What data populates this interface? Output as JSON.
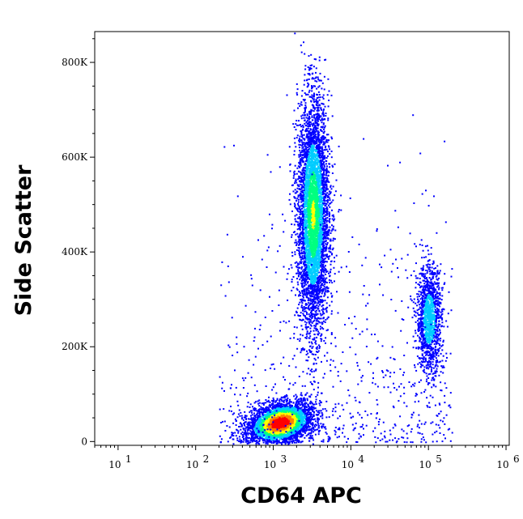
{
  "chart_data": {
    "type": "scatter",
    "subtype": "flow-cytometry-density-dot-plot",
    "title": "",
    "xlabel": "CD64 APC",
    "ylabel": "Side Scatter",
    "x_scale": "log",
    "y_scale": "linear",
    "xlim": [
      5,
      1100000.0
    ],
    "ylim": [
      -8000,
      865000
    ],
    "x_ticks": [
      {
        "value": 10,
        "base": "10",
        "exp": "1"
      },
      {
        "value": 100,
        "base": "10",
        "exp": "2"
      },
      {
        "value": 1000,
        "base": "10",
        "exp": "3"
      },
      {
        "value": 10000,
        "base": "10",
        "exp": "4"
      },
      {
        "value": 100000,
        "base": "10",
        "exp": "5"
      },
      {
        "value": 1000000,
        "base": "10",
        "exp": "6"
      }
    ],
    "y_ticks": [
      {
        "value": 0,
        "label": "0"
      },
      {
        "value": 200000,
        "label": "200K"
      },
      {
        "value": 400000,
        "label": "400K"
      },
      {
        "value": 600000,
        "label": "600K"
      },
      {
        "value": 800000,
        "label": "800K"
      }
    ],
    "grid": false,
    "legend": "none",
    "colormap": [
      "#0000ff",
      "#00ccff",
      "#00ff80",
      "#ffff00",
      "#ff8000",
      "#ff0000"
    ],
    "populations": [
      {
        "x_center": 1200,
        "y_center": 40000,
        "x_spread_decades": 0.2,
        "y_spread": 22000,
        "count": 3800,
        "peak_density": 1.0
      },
      {
        "x_center": 3200,
        "y_center": 480000,
        "x_spread_decades": 0.1,
        "y_spread": 120000,
        "count": 5000,
        "peak_density": 0.6
      },
      {
        "x_center": 100000,
        "y_center": 260000,
        "x_spread_decades": 0.08,
        "y_spread": 55000,
        "count": 1300,
        "peak_density": 0.45
      }
    ]
  }
}
